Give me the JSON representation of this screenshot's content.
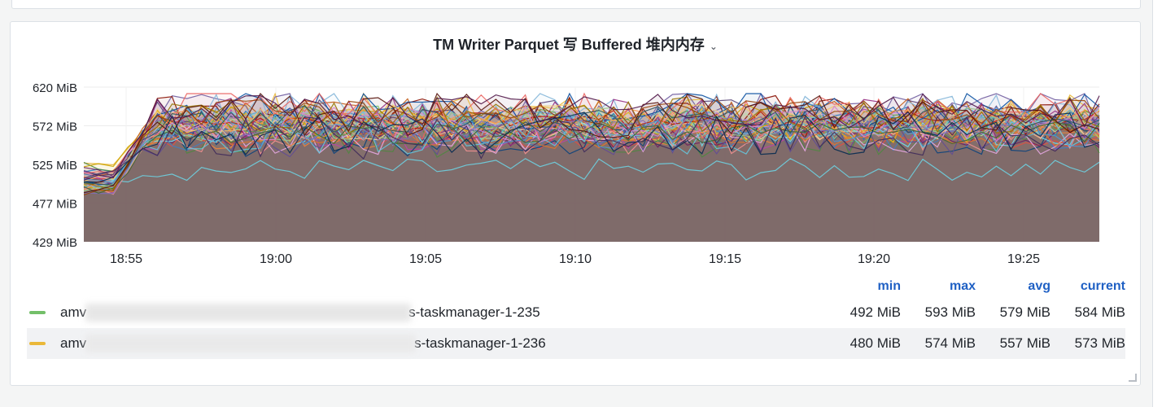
{
  "panel": {
    "title": "TM Writer Parquet 写 Buffered 堆内内存",
    "chevron": "⌄"
  },
  "chart_data": {
    "type": "area",
    "title": "TM Writer Parquet 写 Buffered 堆内内存",
    "y_ticks": [
      "620 MiB",
      "572 MiB",
      "525 MiB",
      "477 MiB",
      "429 MiB"
    ],
    "ylim": [
      429,
      620
    ],
    "y_unit": "MiB",
    "x_ticks": [
      "18:55",
      "19:00",
      "19:05",
      "19:10",
      "19:15",
      "19:20",
      "19:25"
    ],
    "grid": true,
    "legend_position": "bottom",
    "legend_columns": [
      "min",
      "max",
      "avg",
      "current"
    ],
    "series": [
      {
        "name": "amv…s-taskmanager-1-235",
        "color": "#73bf69",
        "min": "492 MiB",
        "max": "593 MiB",
        "avg": "579 MiB",
        "current": "584 MiB"
      },
      {
        "name": "amv…s-taskmanager-1-236",
        "color": "#eab839",
        "min": "480 MiB",
        "max": "574 MiB",
        "avg": "557 MiB",
        "current": "573 MiB"
      }
    ],
    "extra_line_colors": [
      "#6ed0e0",
      "#ef843c",
      "#e24d42",
      "#1f78c1",
      "#ba43a9",
      "#705da0",
      "#508642",
      "#cca300",
      "#447ebc",
      "#c15c17",
      "#890f02",
      "#0a437c",
      "#6d1f62",
      "#584477",
      "#b7dbab",
      "#f4d598",
      "#70dbed",
      "#f9ba8f",
      "#f29191",
      "#82b5d8",
      "#e5a8e2",
      "#aea2e0",
      "#629e51",
      "#e5ac0e",
      "#64b0c8",
      "#e0752d",
      "#bf1b00",
      "#0a50a1",
      "#962d82",
      "#614d93",
      "#9ac48a",
      "#f2c96d",
      "#65c5db",
      "#f9934e",
      "#ea6460",
      "#5195ce",
      "#d683ce",
      "#806eb7",
      "#3f6833",
      "#967302",
      "#2f575e",
      "#99440a",
      "#58140c",
      "#052b51",
      "#511749",
      "#3f2b5b"
    ]
  },
  "legend": {
    "rows": [
      {
        "prefix": "amv",
        "suffix": "s-taskmanager-1-235",
        "color": "#73bf69",
        "min": "492 MiB",
        "max": "593 MiB",
        "avg": "579 MiB",
        "current": "584 MiB"
      },
      {
        "prefix": "amv",
        "suffix": "s-taskmanager-1-236",
        "color": "#eab839",
        "min": "480 MiB",
        "max": "574 MiB",
        "avg": "557 MiB",
        "current": "573 MiB"
      }
    ]
  }
}
